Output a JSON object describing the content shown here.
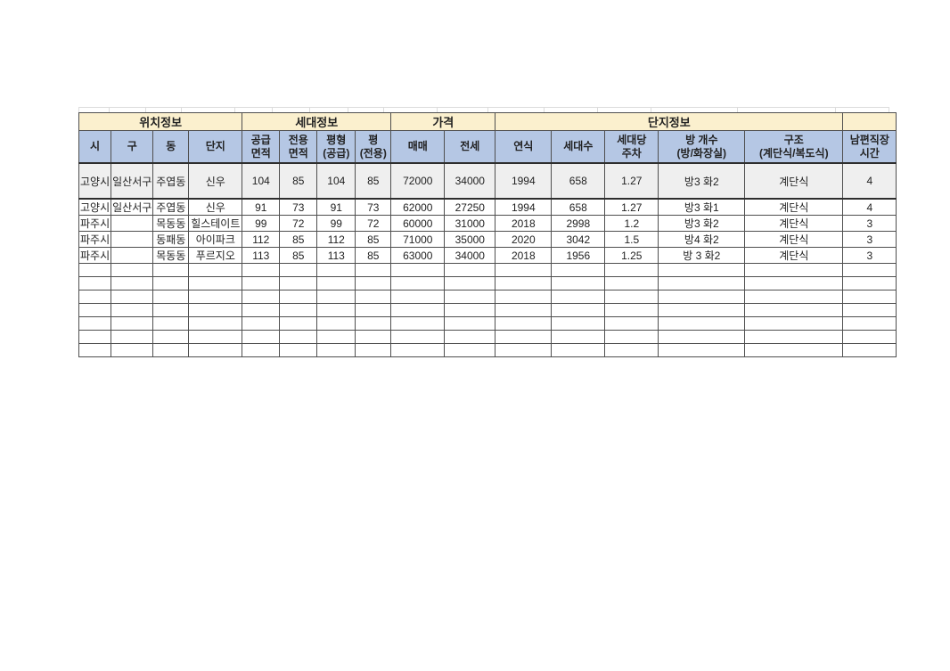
{
  "colors": {
    "group_header_bg": "#FBF0CE",
    "column_header_bg": "#B5C7E4",
    "first_row_bg": "#EFEFEF",
    "border": "#4f4f4f",
    "faint_gridline": "#dcdcdc"
  },
  "table": {
    "groups": [
      {
        "label": "위치정보",
        "span": 4
      },
      {
        "label": "세대정보",
        "span": 4
      },
      {
        "label": "가격",
        "span": 2
      },
      {
        "label": "단지정보",
        "span": 5
      },
      {
        "label": "",
        "span": 1
      }
    ],
    "columns": [
      {
        "lines": [
          "시"
        ]
      },
      {
        "lines": [
          "구"
        ]
      },
      {
        "lines": [
          "동"
        ]
      },
      {
        "lines": [
          "단지"
        ]
      },
      {
        "lines": [
          "공급",
          "면적"
        ]
      },
      {
        "lines": [
          "전용",
          "면적"
        ]
      },
      {
        "lines": [
          "평형",
          "(공급)"
        ]
      },
      {
        "lines": [
          "평",
          "(전용)"
        ]
      },
      {
        "lines": [
          "매매"
        ]
      },
      {
        "lines": [
          "전세"
        ]
      },
      {
        "lines": [
          "연식"
        ]
      },
      {
        "lines": [
          "세대수"
        ]
      },
      {
        "lines": [
          "세대당",
          "주차"
        ]
      },
      {
        "lines": [
          "방 개수",
          "(방/화장실)"
        ]
      },
      {
        "lines": [
          "구조",
          "(계단식/복도식)"
        ]
      },
      {
        "lines": [
          "남편직장",
          "시간"
        ]
      }
    ],
    "rows": [
      [
        "고양시",
        "일산서구",
        "주엽동",
        "신우",
        "104",
        "85",
        "104",
        "85",
        "72000",
        "34000",
        "1994",
        "658",
        "1.27",
        "방3 화2",
        "계단식",
        "4"
      ],
      [
        "고양시",
        "일산서구",
        "주엽동",
        "신우",
        "91",
        "73",
        "91",
        "73",
        "62000",
        "27250",
        "1994",
        "658",
        "1.27",
        "방3 화1",
        "계단식",
        "4"
      ],
      [
        "파주시",
        "",
        "목동동",
        "힐스테이트",
        "99",
        "72",
        "99",
        "72",
        "60000",
        "31000",
        "2018",
        "2998",
        "1.2",
        "방3 화2",
        "계단식",
        "3"
      ],
      [
        "파주시",
        "",
        "동패동",
        "아이파크",
        "112",
        "85",
        "112",
        "85",
        "71000",
        "35000",
        "2020",
        "3042",
        "1.5",
        "방4 화2",
        "계단식",
        "3"
      ],
      [
        "파주시",
        "",
        "목동동",
        "푸르지오",
        "113",
        "85",
        "113",
        "85",
        "63000",
        "34000",
        "2018",
        "1956",
        "1.25",
        "방 3 화2",
        "계단식",
        "3"
      ]
    ],
    "empty_row_count": 7
  }
}
